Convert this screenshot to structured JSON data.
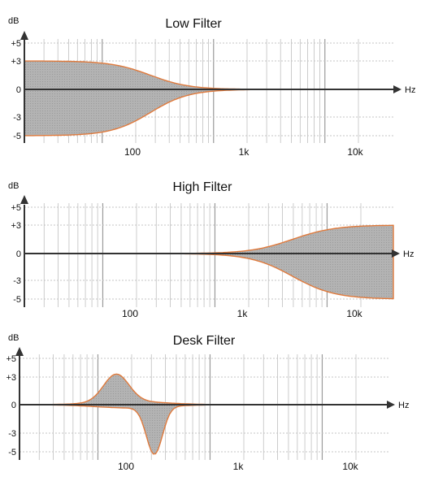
{
  "colors": {
    "curve": "#e07a3c",
    "fill": "#b3b3b3",
    "axis": "#333333",
    "grid_major": "#9a9a9a",
    "grid_minor": "#c7c7c7",
    "dotted": "#c4c4c4"
  },
  "charts": [
    {
      "title": "Low Filter",
      "y_unit": "dB",
      "x_unit": "Hz",
      "y_ticks": [
        "+5",
        "+3",
        "0",
        "-3",
        "-5"
      ],
      "x_ticks": [
        "100",
        "1k",
        "10k"
      ]
    },
    {
      "title": "High Filter",
      "y_unit": "dB",
      "x_unit": "Hz",
      "y_ticks": [
        "+5",
        "+3",
        "0",
        "-3",
        "-5"
      ],
      "x_ticks": [
        "100",
        "1k",
        "10k"
      ]
    },
    {
      "title": "Desk Filter",
      "y_unit": "dB",
      "x_unit": "Hz",
      "y_ticks": [
        "+5",
        "+3",
        "0",
        "-3",
        "-5"
      ],
      "x_ticks": [
        "100",
        "1k",
        "10k"
      ]
    }
  ]
}
